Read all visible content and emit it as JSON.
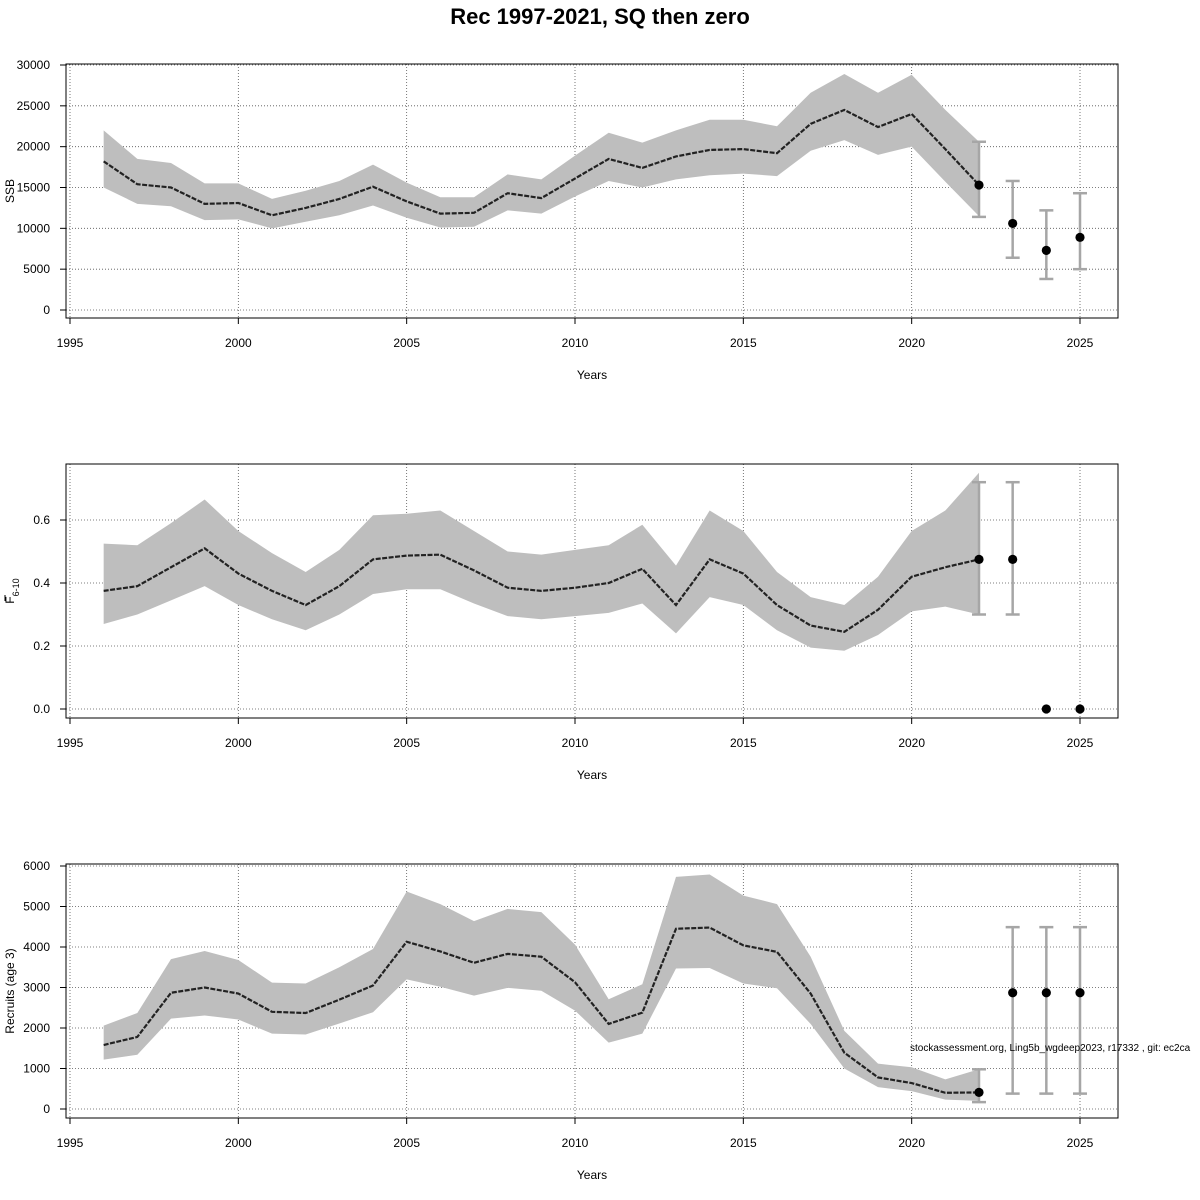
{
  "figure": {
    "title": "Rec 1997-2021, SQ then zero",
    "watermark": "stockassessment.org, Ling5b_wgdeep2023, r17332 , git: ec2ca"
  },
  "colors": {
    "band": "#bebebe",
    "line": "#222222",
    "errorbar": "#a6a6a6",
    "point": "#000000",
    "grid": "#555555"
  },
  "chart_data": [
    {
      "type": "line",
      "id": "ssb",
      "xlabel": "Years",
      "ylabel": "SSB",
      "xlim": [
        1995,
        2025
      ],
      "xticks": [
        1995,
        2000,
        2005,
        2010,
        2015,
        2020,
        2025
      ],
      "ylim": [
        0,
        30000
      ],
      "yticks": [
        0,
        5000,
        10000,
        15000,
        20000,
        25000,
        30000
      ],
      "ytick_labels": [
        "0",
        "5000",
        "10000",
        "15000",
        "20000",
        "25000",
        "30000"
      ],
      "grid": true,
      "x": [
        1996,
        1997,
        1998,
        1999,
        2000,
        2001,
        2002,
        2003,
        2004,
        2005,
        2006,
        2007,
        2008,
        2009,
        2010,
        2011,
        2012,
        2013,
        2014,
        2015,
        2016,
        2017,
        2018,
        2019,
        2020,
        2021,
        2022
      ],
      "estimate": [
        18200,
        15400,
        15000,
        13000,
        13100,
        11600,
        12500,
        13600,
        15100,
        13300,
        11800,
        11900,
        14300,
        13700,
        16100,
        18500,
        17400,
        18800,
        19600,
        19700,
        19200,
        22800,
        24500,
        22400,
        24000,
        19700,
        15300
      ],
      "lower": [
        15000,
        13000,
        12700,
        11000,
        11100,
        10000,
        10800,
        11600,
        12800,
        11300,
        10100,
        10200,
        12200,
        11800,
        13900,
        15800,
        15000,
        16000,
        16500,
        16700,
        16400,
        19500,
        20800,
        19000,
        20000,
        15700,
        11500
      ],
      "upper": [
        22000,
        18500,
        18000,
        15500,
        15500,
        13600,
        14600,
        15800,
        17800,
        15600,
        13800,
        13800,
        16600,
        16000,
        18900,
        21700,
        20500,
        22000,
        23300,
        23300,
        22500,
        26600,
        28900,
        26600,
        28800,
        24500,
        20600
      ],
      "forecast": {
        "x": [
          2022,
          2023,
          2024,
          2025
        ],
        "median": [
          15300,
          10600,
          7300,
          8900
        ],
        "low": [
          11400,
          6400,
          3800,
          5000
        ],
        "high": [
          20600,
          15800,
          12200,
          14300
        ]
      }
    },
    {
      "type": "line",
      "id": "fbar",
      "xlabel": "Years",
      "ylabel": "F",
      "ylabel_sub": "6-10",
      "xlim": [
        1995,
        2025
      ],
      "xticks": [
        1995,
        2000,
        2005,
        2010,
        2015,
        2020,
        2025
      ],
      "ylim": [
        0,
        0.75
      ],
      "yticks": [
        0,
        0.2,
        0.4,
        0.6
      ],
      "ytick_labels": [
        "0.0",
        "0.2",
        "0.4",
        "0.6"
      ],
      "grid": true,
      "x": [
        1996,
        1997,
        1998,
        1999,
        2000,
        2001,
        2002,
        2003,
        2004,
        2005,
        2006,
        2007,
        2008,
        2009,
        2010,
        2011,
        2012,
        2013,
        2014,
        2015,
        2016,
        2017,
        2018,
        2019,
        2020,
        2021,
        2022
      ],
      "estimate": [
        0.375,
        0.39,
        0.45,
        0.51,
        0.43,
        0.375,
        0.33,
        0.39,
        0.475,
        0.487,
        0.49,
        0.44,
        0.385,
        0.375,
        0.385,
        0.4,
        0.445,
        0.33,
        0.475,
        0.43,
        0.33,
        0.265,
        0.245,
        0.315,
        0.42,
        0.45,
        0.475
      ],
      "lower": [
        0.27,
        0.3,
        0.345,
        0.39,
        0.33,
        0.285,
        0.25,
        0.3,
        0.365,
        0.38,
        0.38,
        0.335,
        0.295,
        0.285,
        0.295,
        0.305,
        0.335,
        0.24,
        0.355,
        0.33,
        0.25,
        0.195,
        0.185,
        0.235,
        0.31,
        0.325,
        0.3
      ],
      "upper": [
        0.525,
        0.52,
        0.59,
        0.665,
        0.565,
        0.495,
        0.435,
        0.505,
        0.615,
        0.62,
        0.63,
        0.565,
        0.5,
        0.49,
        0.505,
        0.52,
        0.585,
        0.455,
        0.63,
        0.565,
        0.435,
        0.355,
        0.33,
        0.42,
        0.565,
        0.63,
        0.75
      ],
      "forecast": {
        "x": [
          2022,
          2023,
          2024,
          2025
        ],
        "median": [
          0.475,
          0.475,
          0.0,
          0.0
        ],
        "low": [
          0.3,
          0.3,
          0.0,
          0.0
        ],
        "high": [
          0.72,
          0.72,
          0.0,
          0.0
        ]
      }
    },
    {
      "type": "line",
      "id": "recruits",
      "xlabel": "Years",
      "ylabel": "Recruits (age 3)",
      "xlim": [
        1995,
        2025
      ],
      "xticks": [
        1995,
        2000,
        2005,
        2010,
        2015,
        2020,
        2025
      ],
      "ylim": [
        0,
        6000
      ],
      "yticks": [
        0,
        1000,
        2000,
        3000,
        4000,
        5000,
        6000
      ],
      "ytick_labels": [
        "0",
        "1000",
        "2000",
        "3000",
        "4000",
        "5000",
        "6000"
      ],
      "grid": true,
      "x": [
        1996,
        1997,
        1998,
        1999,
        2000,
        2001,
        2002,
        2003,
        2004,
        2005,
        2006,
        2007,
        2008,
        2009,
        2010,
        2011,
        2012,
        2013,
        2014,
        2015,
        2016,
        2017,
        2018,
        2019,
        2020,
        2021,
        2022
      ],
      "estimate": [
        1580,
        1780,
        2870,
        3000,
        2850,
        2400,
        2370,
        2700,
        3050,
        4130,
        3890,
        3610,
        3830,
        3760,
        3130,
        2100,
        2380,
        4450,
        4480,
        4040,
        3880,
        2850,
        1390,
        780,
        640,
        400,
        410
      ],
      "lower": [
        1220,
        1340,
        2230,
        2310,
        2210,
        1860,
        1840,
        2110,
        2390,
        3200,
        3020,
        2800,
        2990,
        2920,
        2430,
        1640,
        1860,
        3470,
        3480,
        3100,
        2980,
        2100,
        1000,
        540,
        440,
        230,
        200
      ],
      "upper": [
        2060,
        2370,
        3700,
        3900,
        3680,
        3120,
        3100,
        3500,
        3950,
        5370,
        5060,
        4640,
        4940,
        4860,
        4060,
        2710,
        3080,
        5730,
        5790,
        5270,
        5060,
        3760,
        1930,
        1120,
        1030,
        730,
        980
      ],
      "forecast": {
        "x": [
          2022,
          2023,
          2024,
          2025
        ],
        "median": [
          410,
          2870,
          2870,
          2870
        ],
        "low": [
          170,
          380,
          380,
          380
        ],
        "high": [
          980,
          4490,
          4490,
          4490
        ]
      }
    }
  ]
}
